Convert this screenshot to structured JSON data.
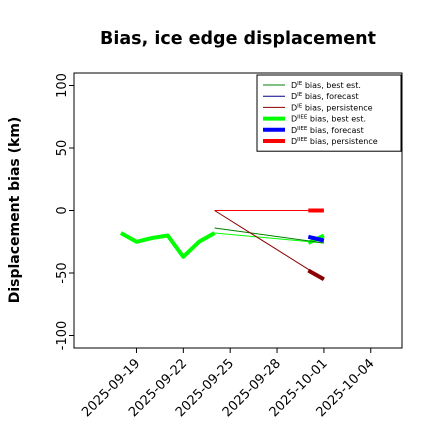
{
  "chart_data": {
    "type": "line",
    "title": "Bias, ice edge displacement",
    "ylabel": "Displacement bias (km)",
    "xlabel": "",
    "ylim": [
      -110,
      110
    ],
    "xlim": [
      "2025-09-15",
      "2025-10-06"
    ],
    "yticks": [
      {
        "value": 100,
        "label": "100"
      },
      {
        "value": 50,
        "label": "50"
      },
      {
        "value": 0,
        "label": "0"
      },
      {
        "value": -50,
        "label": "-50"
      },
      {
        "value": -100,
        "label": "-100"
      }
    ],
    "xticks": [
      {
        "date": "2025-09-19",
        "label": "2025-09-19",
        "color": "#000000"
      },
      {
        "date": "2025-09-22",
        "label": "2025-09-22",
        "color": "#000000"
      },
      {
        "date": "2025-09-25",
        "label": "2025-09-25",
        "color": "#228B22"
      },
      {
        "date": "2025-09-28",
        "label": "2025-09-28",
        "color": "#000000"
      },
      {
        "date": "2025-10-01",
        "label": "2025-10-01",
        "color": "#000000"
      },
      {
        "date": "2025-10-04",
        "label": "2025-10-04",
        "color": "#000000"
      }
    ],
    "legend_position": "top-right",
    "grid": false,
    "series": [
      {
        "name": "D<sup>IE</sup> bias, best est.",
        "legend_main": "D",
        "legend_sup": "IE",
        "legend_rest": " bias, best est.",
        "color": "#008000",
        "width": 1,
        "points": [
          [
            "2025-09-24",
            -14
          ],
          [
            "2025-10-01",
            -26
          ]
        ]
      },
      {
        "name": "D<sup>IE</sup> bias, forecast",
        "legend_main": "D",
        "legend_sup": "IE",
        "legend_rest": " bias, forecast",
        "color": "#00008B",
        "width": 1,
        "points": [
          [
            "2025-10-01",
            -26
          ]
        ]
      },
      {
        "name": "D<sup>IE</sup> bias, persistence",
        "legend_main": "D",
        "legend_sup": "IE",
        "legend_rest": " bias, persistence",
        "color": "#8B0000",
        "width": 1,
        "points": [
          [
            "2025-09-24",
            0
          ],
          [
            "2025-09-30",
            -47
          ],
          [
            "2025-10-01",
            -55
          ]
        ]
      },
      {
        "name": "D<sup>IIEE</sup> bias, best est.",
        "legend_main": "D",
        "legend_sup": "IIEE",
        "legend_rest": " bias, best est.",
        "color": "#00FF00",
        "width": 4,
        "points": [
          [
            "2025-09-18",
            -18
          ],
          [
            "2025-09-19",
            -25
          ],
          [
            "2025-09-20",
            -22
          ],
          [
            "2025-09-21",
            -20
          ],
          [
            "2025-09-22",
            -37
          ],
          [
            "2025-09-23",
            -25
          ],
          [
            "2025-09-24",
            -18
          ]
        ]
      },
      {
        "name": "D<sup>IIEE</sup> bias, forecast",
        "legend_main": "D",
        "legend_sup": "IIEE",
        "legend_rest": " bias, forecast",
        "color": "#0000FF",
        "width": 4,
        "points": [
          [
            "2025-09-30",
            -21
          ],
          [
            "2025-10-01",
            -24
          ]
        ]
      },
      {
        "name": "D<sup>IIEE</sup> bias, persistence",
        "legend_main": "D",
        "legend_sup": "IIEE",
        "legend_rest": " bias, persistence",
        "color": "#FF0000",
        "width": 4,
        "points": [
          [
            "2025-09-30",
            0
          ],
          [
            "2025-10-01",
            0
          ]
        ]
      }
    ],
    "extra_lines": [
      {
        "color": "#00FF00",
        "width": 1,
        "points": [
          [
            "2025-09-24",
            -18
          ],
          [
            "2025-10-01",
            -26
          ]
        ]
      },
      {
        "color": "#FF0000",
        "width": 1,
        "points": [
          [
            "2025-09-24",
            0
          ],
          [
            "2025-09-30",
            0
          ]
        ]
      },
      {
        "color": "#00FF00",
        "width": 4,
        "points": [
          [
            "2025-09-30",
            -26
          ],
          [
            "2025-10-01",
            -20
          ]
        ]
      },
      {
        "color": "#8B0000",
        "width": 4,
        "points": [
          [
            "2025-09-30",
            -48
          ],
          [
            "2025-10-01",
            -55
          ]
        ]
      }
    ]
  }
}
